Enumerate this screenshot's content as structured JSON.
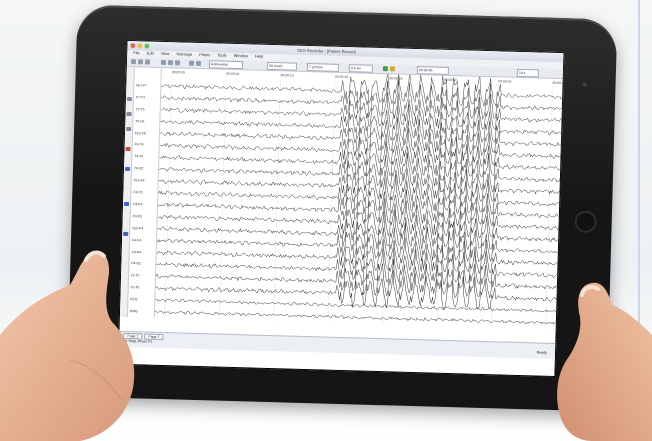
{
  "scene": {
    "description_colors": {
      "background": "#f1f3f5",
      "tablet": "#151515",
      "skin": "#e8b393"
    }
  },
  "app": {
    "window_title": "EEG Recorder - [Patient Record]",
    "menu": [
      "File",
      "Edit",
      "View",
      "Montage",
      "Filters",
      "Tools",
      "Window",
      "Help"
    ],
    "toolbar": {
      "montage_value": "Referential",
      "speed_value": "30 mm/s",
      "sensitivity_value": "7 µV/mm",
      "filter_value": "0.5 Hz",
      "time_value": "00:00:45",
      "zoom_value": "10 s"
    },
    "time_marks": [
      "00:00:05",
      "00:00:10",
      "00:00:15",
      "00:00:20",
      "00:00:25",
      "00:00:30",
      "00:00:35",
      "00:00:40"
    ],
    "channels": [
      "Fp1-F7",
      "F7-T3",
      "T3-T5",
      "T5-O1",
      "Fp2-F8",
      "F8-T4",
      "T4-T6",
      "T6-O2",
      "Fp1-F3",
      "F3-C3",
      "C3-P3",
      "P3-O1",
      "Fp2-F4",
      "F4-C4",
      "C4-P4",
      "P4-O2",
      "Fz-Cz",
      "Cz-Pz",
      "ECG",
      "EMG"
    ],
    "tabs": [
      "Page 1",
      "Page 2"
    ],
    "status_left": "For Help, Press F1",
    "status_right": "Ready"
  }
}
